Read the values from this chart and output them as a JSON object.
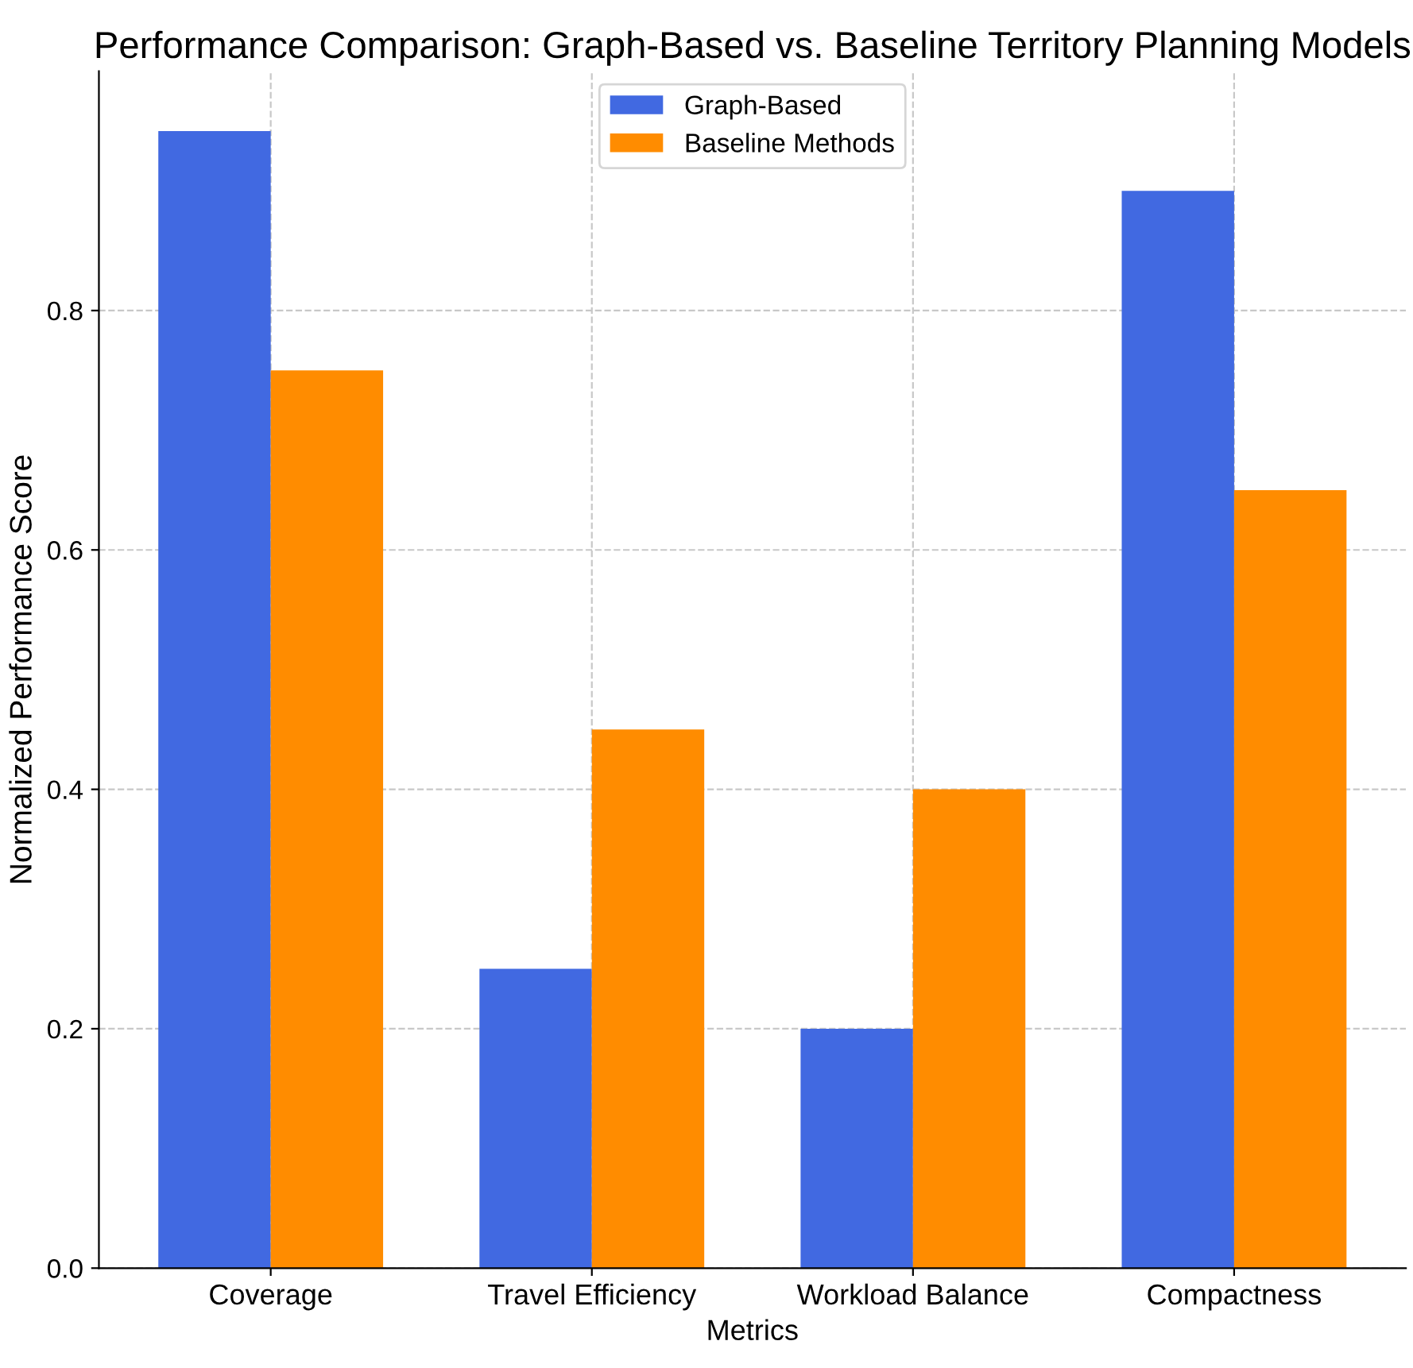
{
  "chart_data": {
    "type": "bar",
    "title": "Performance Comparison: Graph-Based vs. Baseline Territory Planning Models",
    "xlabel": "Metrics",
    "ylabel": "Normalized Performance Score",
    "categories": [
      "Coverage",
      "Travel Efficiency",
      "Workload Balance",
      "Compactness"
    ],
    "series": [
      {
        "name": "Graph-Based",
        "color": "#4169e1",
        "values": [
          0.95,
          0.25,
          0.2,
          0.9
        ]
      },
      {
        "name": "Baseline Methods",
        "color": "#ff8c00",
        "values": [
          0.75,
          0.45,
          0.4,
          0.65
        ]
      }
    ],
    "ylim": [
      0,
      1.0
    ],
    "yticks": [
      {
        "value": 0.0,
        "label": "0.0"
      },
      0.2,
      0.4,
      0.6,
      0.8
    ],
    "grid": true,
    "line_style": "dashed",
    "legend": "top"
  }
}
